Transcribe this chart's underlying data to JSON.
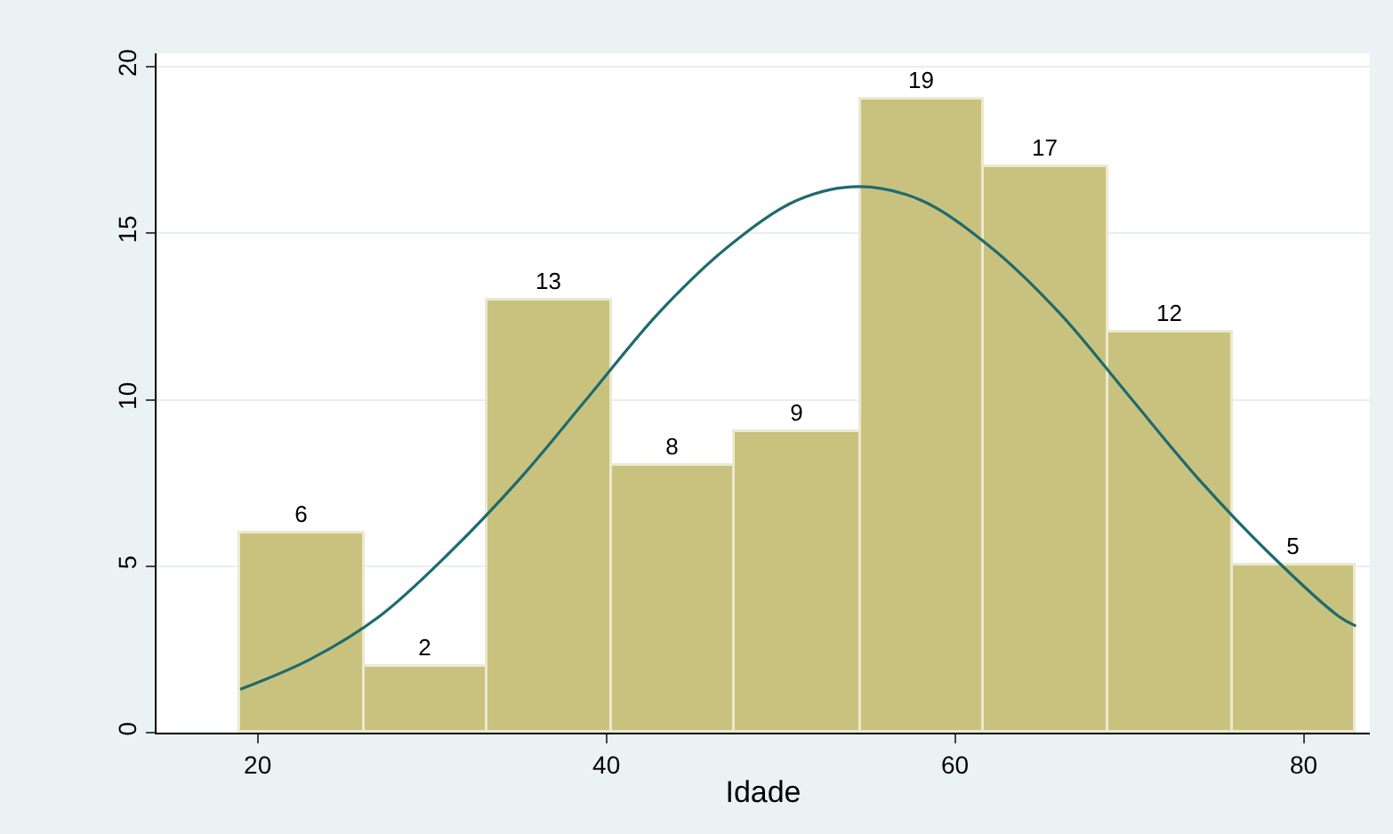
{
  "chart_data": {
    "type": "histogram",
    "xlabel": "Idade",
    "xlim": [
      14.2,
      83.8
    ],
    "xticks": [
      20,
      40,
      60,
      80
    ],
    "ylim": [
      0,
      20.4
    ],
    "yticks": [
      0,
      5,
      10,
      15,
      20
    ],
    "grid": "y",
    "series": [
      {
        "color": "#c9c27e",
        "bins": [
          19,
          26.1,
          33.2,
          40.3,
          47.4,
          54.6,
          61.7,
          68.8,
          75.9,
          83
        ],
        "values": [
          6,
          2,
          13,
          8,
          9,
          19,
          17,
          12,
          5
        ],
        "value_labels": [
          "6",
          "2",
          "13",
          "8",
          "9",
          "19",
          "17",
          "12",
          "5"
        ]
      },
      {
        "type": "line",
        "color": "#1e6b6e",
        "marker": "none",
        "line_style": "solid",
        "x": [
          19,
          23,
          27,
          31,
          35,
          39,
          43,
          47,
          51,
          54.5,
          58,
          62,
          66,
          70,
          74,
          78,
          82,
          83
        ],
        "values": [
          1.3,
          2.2,
          3.5,
          5.4,
          7.6,
          10.1,
          12.6,
          14.6,
          16.0,
          16.4,
          16.0,
          14.6,
          12.6,
          10.1,
          7.6,
          5.4,
          3.5,
          3.2
        ]
      }
    ]
  }
}
